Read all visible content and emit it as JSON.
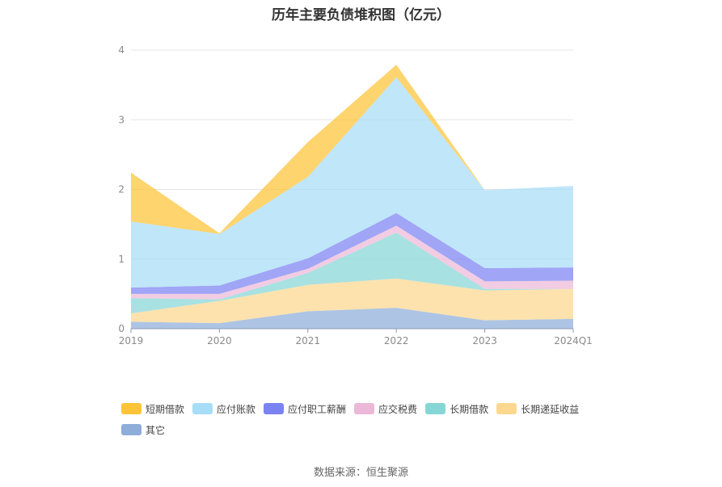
{
  "chart_data": {
    "type": "area",
    "stacked": true,
    "title": "历年主要负债堆积图（亿元）",
    "categories": [
      "2019",
      "2020",
      "2021",
      "2022",
      "2023",
      "2024Q1"
    ],
    "ylim": [
      0,
      4
    ],
    "yticks": [
      "0",
      "1",
      "2",
      "3",
      "4"
    ],
    "grid": true,
    "legend_position": "bottom",
    "series": [
      {
        "name": "其它",
        "color": "#8eadd9",
        "values": [
          0.1,
          0.08,
          0.25,
          0.3,
          0.12,
          0.14
        ]
      },
      {
        "name": "长期递延收益",
        "color": "#fcd78f",
        "values": [
          0.12,
          0.32,
          0.38,
          0.42,
          0.43,
          0.43
        ]
      },
      {
        "name": "长期借款",
        "color": "#86d6d6",
        "values": [
          0.22,
          0.02,
          0.17,
          0.66,
          0.02,
          0.0
        ]
      },
      {
        "name": "应交税费",
        "color": "#ebb8d8",
        "values": [
          0.06,
          0.08,
          0.06,
          0.1,
          0.11,
          0.12
        ]
      },
      {
        "name": "应付职工薪酬",
        "color": "#7b82f2",
        "values": [
          0.09,
          0.12,
          0.15,
          0.18,
          0.19,
          0.19
        ]
      },
      {
        "name": "应付账款",
        "color": "#a8ddf7",
        "values": [
          0.95,
          0.74,
          1.17,
          1.95,
          1.12,
          1.17
        ]
      },
      {
        "name": "短期借款",
        "color": "#fdc438",
        "values": [
          0.7,
          0.01,
          0.5,
          0.18,
          0.0,
          0.0
        ]
      }
    ],
    "legend_order": [
      "短期借款",
      "应付账款",
      "应付职工薪酬",
      "应交税费",
      "长期借款",
      "长期递延收益",
      "其它"
    ]
  },
  "source_text": "数据来源：恒生聚源"
}
